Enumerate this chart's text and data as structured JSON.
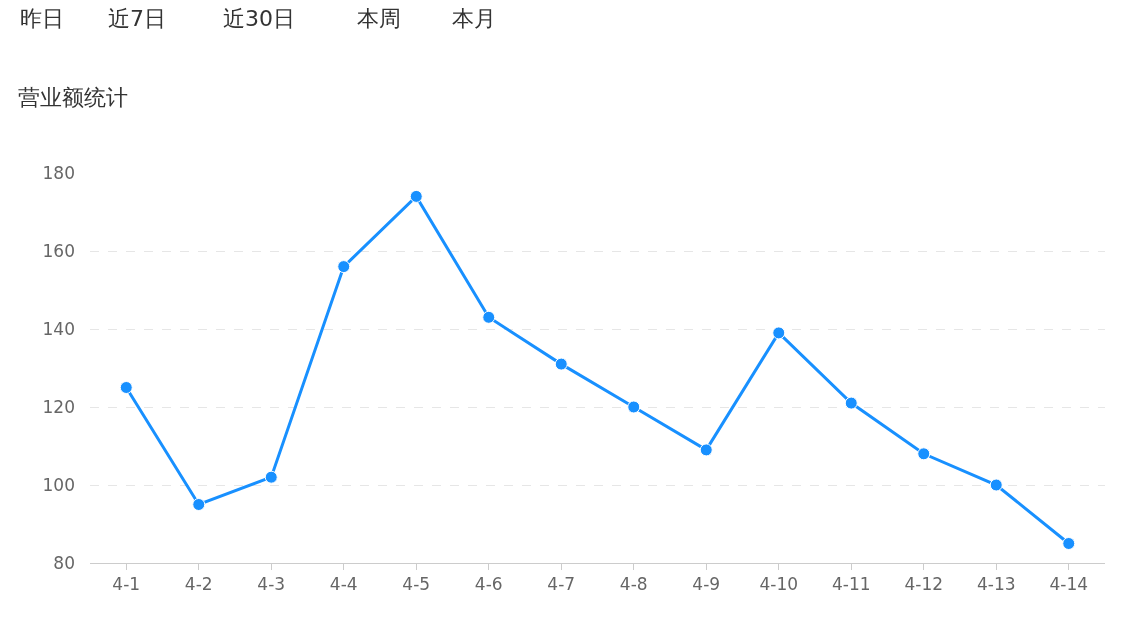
{
  "chart_data": {
    "type": "line",
    "title": "营业额统计",
    "annotations": [
      "昨日",
      "近7日",
      "近30日",
      "本周",
      "本月"
    ],
    "categories": [
      "4-1",
      "4-2",
      "4-3",
      "4-4",
      "4-5",
      "4-6",
      "4-7",
      "4-8",
      "4-9",
      "4-10",
      "4-11",
      "4-12",
      "4-13",
      "4-14"
    ],
    "series": [
      {
        "color": "#1890ff",
        "values": [
          125,
          95,
          102,
          156,
          174,
          143,
          131,
          120,
          109,
          139,
          121,
          108,
          100,
          85
        ]
      }
    ],
    "ylim": [
      80,
      180
    ],
    "yticks": [
      80,
      100,
      120,
      140,
      160,
      180
    ],
    "grid": "y",
    "marker": "circle",
    "line_style": "solid",
    "legend": false
  }
}
